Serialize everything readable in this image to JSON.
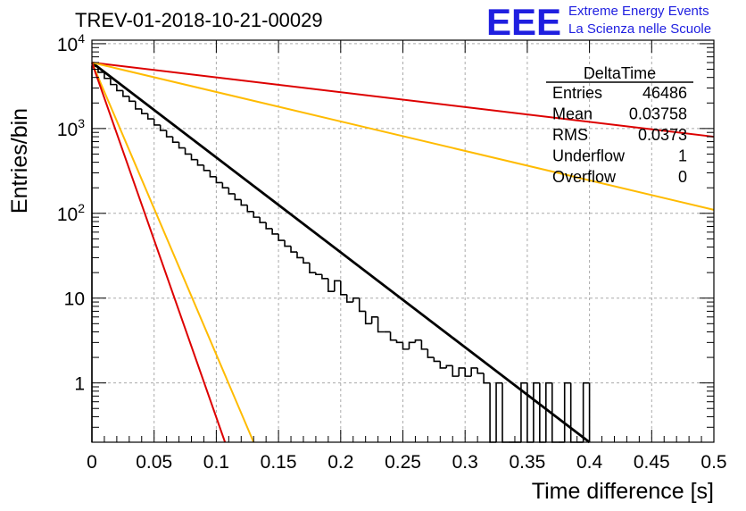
{
  "title": "TREV-01-2018-10-21-00029",
  "logo": {
    "mark": "EEE",
    "line1": "Extreme Energy Events",
    "line2": "La Scienza nelle Scuole"
  },
  "colors": {
    "red": "#dd0000",
    "orange": "#ffbb00",
    "black": "#000000",
    "logo_blue": "#1f1fe0"
  },
  "chart_data": {
    "type": "line",
    "title": "TREV-01-2018-10-21-00029",
    "xlabel": "Time difference [s]",
    "ylabel": "Entries/bin",
    "xlim": [
      0,
      0.5
    ],
    "ylim": [
      0.2,
      11000
    ],
    "yscale": "log",
    "grid": true,
    "x_ticks": [
      "0",
      "0.05",
      "0.1",
      "0.15",
      "0.2",
      "0.25",
      "0.3",
      "0.35",
      "0.4",
      "0.45",
      "0.5"
    ],
    "y_ticks": [
      {
        "value": 1,
        "label": "1"
      },
      {
        "value": 10,
        "label": "10"
      },
      {
        "value": 100,
        "label": "10^2"
      },
      {
        "value": 1000,
        "label": "10^3"
      },
      {
        "value": 10000,
        "label": "10^4"
      }
    ],
    "stats_box": {
      "name": "DeltaTime",
      "rows": [
        {
          "label": "Entries",
          "value": "46486"
        },
        {
          "label": "Mean",
          "value": "0.03758"
        },
        {
          "label": "RMS",
          "value": "0.0373"
        },
        {
          "label": "Underflow",
          "value": "1"
        },
        {
          "label": "Overflow",
          "value": "0"
        }
      ]
    },
    "histogram": {
      "bin_width": 0.005,
      "bin_starts": [
        0.0,
        0.005,
        0.01,
        0.015,
        0.02,
        0.025,
        0.03,
        0.035,
        0.04,
        0.045,
        0.05,
        0.055,
        0.06,
        0.065,
        0.07,
        0.075,
        0.08,
        0.085,
        0.09,
        0.095,
        0.1,
        0.105,
        0.11,
        0.115,
        0.12,
        0.125,
        0.13,
        0.135,
        0.14,
        0.145,
        0.15,
        0.155,
        0.16,
        0.165,
        0.17,
        0.175,
        0.18,
        0.185,
        0.19,
        0.195,
        0.2,
        0.205,
        0.21,
        0.215,
        0.22,
        0.225,
        0.23,
        0.235,
        0.24,
        0.245,
        0.25,
        0.255,
        0.26,
        0.265,
        0.27,
        0.275,
        0.28,
        0.285,
        0.29,
        0.295,
        0.3,
        0.305,
        0.31,
        0.315,
        0.32,
        0.325,
        0.33,
        0.335,
        0.34,
        0.345,
        0.35,
        0.355,
        0.36,
        0.365,
        0.37,
        0.375,
        0.38,
        0.385,
        0.39,
        0.395
      ],
      "counts": [
        5400,
        4600,
        3900,
        3300,
        2800,
        2400,
        2100,
        1700,
        1500,
        1300,
        1100,
        950,
        800,
        690,
        590,
        500,
        430,
        370,
        320,
        270,
        230,
        200,
        170,
        145,
        125,
        105,
        90,
        78,
        66,
        57,
        48,
        41,
        35,
        30,
        26,
        20,
        19,
        17,
        12,
        16,
        11,
        9,
        10,
        7,
        5,
        6,
        4,
        4,
        3.2,
        3,
        2.5,
        3,
        3.2,
        2.5,
        2,
        1.8,
        1.5,
        1.6,
        1.2,
        1.5,
        1.2,
        1.5,
        1.3,
        1,
        0,
        1,
        0,
        0,
        0,
        1,
        0,
        1,
        0,
        1,
        0,
        0,
        1,
        0,
        0,
        1
      ]
    },
    "series": [
      {
        "name": "",
        "color": "#000000",
        "x": [
          0,
          0.4
        ],
        "y": [
          6000,
          0.2
        ]
      },
      {
        "name": "",
        "color": "#dd0000",
        "x": [
          0,
          0.5
        ],
        "y": [
          6000,
          800
        ]
      },
      {
        "name": "",
        "color": "#ffbb00",
        "x": [
          0,
          0.5
        ],
        "y": [
          6000,
          110
        ]
      },
      {
        "name": "",
        "color": "#ffbb00",
        "x": [
          0,
          0.13
        ],
        "y": [
          6000,
          0.2
        ]
      },
      {
        "name": "",
        "color": "#dd0000",
        "x": [
          0,
          0.107
        ],
        "y": [
          6000,
          0.2
        ]
      }
    ]
  }
}
